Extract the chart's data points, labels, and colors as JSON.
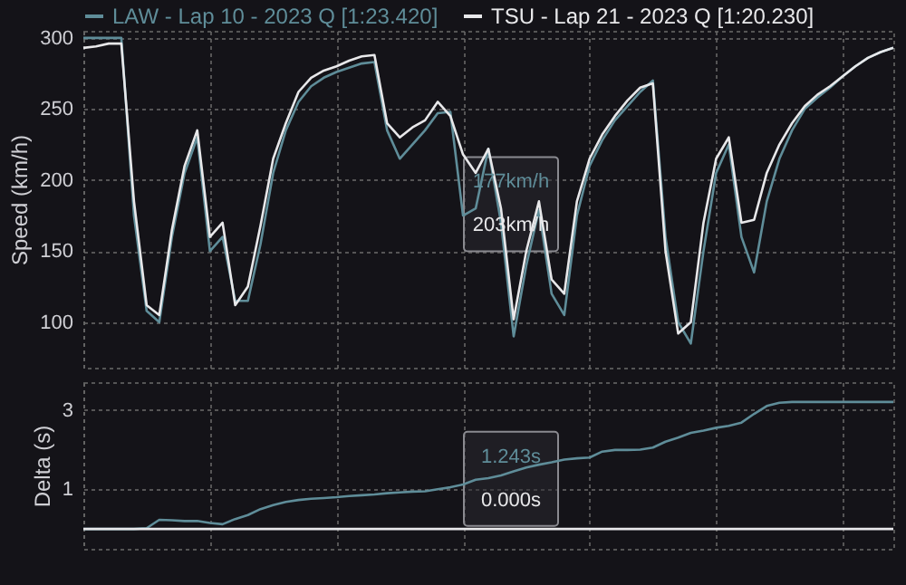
{
  "chart_data": [
    {
      "type": "line",
      "ylabel": "Speed (km/h)",
      "legend": "top",
      "grid": true,
      "tick_labels": "y",
      "categories": [
        null,
        null,
        null,
        null,
        null,
        null,
        null,
        null,
        null,
        null,
        null,
        null,
        null,
        null,
        null,
        null,
        null,
        null,
        null,
        null,
        null,
        null,
        null,
        null,
        null,
        null,
        null,
        null,
        null,
        null,
        null,
        null,
        null,
        null,
        null,
        null,
        null,
        null,
        null,
        null,
        null,
        null,
        null,
        null,
        null,
        null,
        null,
        null,
        null,
        null,
        null,
        null,
        null,
        null,
        null,
        null,
        null,
        null,
        null,
        null,
        null,
        null,
        null,
        null,
        null
      ],
      "ylim": [
        68,
        305
      ],
      "yticks": [
        100,
        150,
        200,
        250,
        300
      ],
      "annotations": [
        "177km/h",
        "203km/h"
      ],
      "series": [
        {
          "name": "LAW - Lap 10 - 2023 Q [1:23.420]",
          "color": "#5f8d99",
          "values": [
            300,
            300,
            300,
            300,
            175,
            108,
            100,
            160,
            205,
            230,
            150,
            160,
            115,
            115,
            155,
            205,
            235,
            255,
            266,
            272,
            276,
            279,
            282,
            283,
            235,
            215,
            225,
            235,
            247,
            248,
            175,
            180,
            222,
            170,
            90,
            140,
            179,
            120,
            105,
            175,
            210,
            228,
            242,
            252,
            262,
            270,
            160,
            100,
            85,
            150,
            205,
            225,
            160,
            135,
            185,
            215,
            235,
            250,
            258,
            265,
            273,
            280,
            286,
            290,
            293
          ]
        },
        {
          "name": "TSU - Lap 21 - 2023 Q [1:20.230]",
          "color": "#e8e8ea",
          "values": [
            293,
            294,
            296,
            296,
            185,
            112,
            105,
            165,
            210,
            235,
            160,
            170,
            112,
            125,
            168,
            215,
            240,
            262,
            272,
            277,
            280,
            284,
            287,
            288,
            240,
            230,
            237,
            242,
            255,
            245,
            218,
            205,
            222,
            180,
            102,
            150,
            185,
            130,
            120,
            185,
            215,
            232,
            245,
            256,
            265,
            268,
            150,
            92,
            100,
            170,
            215,
            230,
            170,
            172,
            205,
            225,
            240,
            252,
            260,
            266,
            273,
            280,
            286,
            290,
            293
          ]
        }
      ]
    },
    {
      "type": "line",
      "ylabel": "Delta (s)",
      "grid": true,
      "tick_labels": "y",
      "categories": [
        null,
        null,
        null,
        null,
        null,
        null,
        null,
        null,
        null,
        null,
        null,
        null,
        null,
        null,
        null,
        null,
        null,
        null,
        null,
        null,
        null,
        null,
        null,
        null,
        null,
        null,
        null,
        null,
        null,
        null,
        null,
        null,
        null,
        null,
        null,
        null,
        null,
        null,
        null,
        null,
        null,
        null,
        null,
        null,
        null,
        null,
        null,
        null,
        null,
        null,
        null,
        null,
        null,
        null,
        null,
        null,
        null,
        null,
        null,
        null,
        null,
        null,
        null,
        null,
        null
      ],
      "ylim": [
        -0.5,
        3.7
      ],
      "yticks": [
        1,
        3
      ],
      "annotations": [
        "1.243s",
        "0.000s"
      ],
      "series": [
        {
          "color": "#5f8d99",
          "values": [
            0,
            0,
            0,
            0,
            0,
            0.02,
            0.23,
            0.22,
            0.2,
            0.2,
            0.15,
            0.12,
            0.25,
            0.35,
            0.5,
            0.6,
            0.68,
            0.73,
            0.76,
            0.78,
            0.8,
            0.83,
            0.85,
            0.87,
            0.9,
            0.92,
            0.94,
            0.95,
            1.0,
            1.05,
            1.12,
            1.24,
            1.28,
            1.35,
            1.45,
            1.55,
            1.62,
            1.68,
            1.75,
            1.78,
            1.8,
            1.95,
            1.99,
            1.99,
            2.0,
            2.05,
            2.2,
            2.3,
            2.42,
            2.48,
            2.55,
            2.6,
            2.68,
            2.9,
            3.1,
            3.18,
            3.2,
            3.2,
            3.2,
            3.2,
            3.2,
            3.2,
            3.2,
            3.2,
            3.2
          ]
        },
        {
          "color": "#e8e8ea",
          "values": [
            0,
            0,
            0,
            0,
            0,
            0,
            0,
            0,
            0,
            0,
            0,
            0,
            0,
            0,
            0,
            0,
            0,
            0,
            0,
            0,
            0,
            0,
            0,
            0,
            0,
            0,
            0,
            0,
            0,
            0,
            0,
            0,
            0,
            0,
            0,
            0,
            0,
            0,
            0,
            0,
            0,
            0,
            0,
            0,
            0,
            0,
            0,
            0,
            0,
            0,
            0,
            0,
            0,
            0,
            0,
            0,
            0,
            0,
            0,
            0,
            0,
            0,
            0,
            0,
            0
          ]
        }
      ]
    }
  ]
}
